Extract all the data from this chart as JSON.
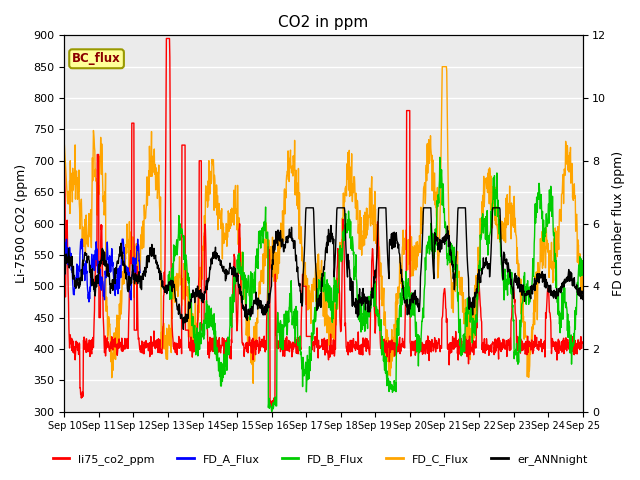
{
  "title": "CO2 in ppm",
  "ylabel_left": "Li-7500 CO2 (ppm)",
  "ylabel_right": "FD chamber flux (ppm)",
  "ylim_left": [
    300,
    900
  ],
  "ylim_right": [
    0,
    12
  ],
  "yticks_left": [
    300,
    350,
    400,
    450,
    500,
    550,
    600,
    650,
    700,
    750,
    800,
    850,
    900
  ],
  "yticks_right": [
    0,
    2,
    4,
    6,
    8,
    10,
    12
  ],
  "x_tick_labels": [
    "Sep 10",
    "Sep 11",
    "Sep 12",
    "Sep 13",
    "Sep 14",
    "Sep 15",
    "Sep 16",
    "Sep 17",
    "Sep 18",
    "Sep 19",
    "Sep 20",
    "Sep 21",
    "Sep 22",
    "Sep 23",
    "Sep 24",
    "Sep 25"
  ],
  "n_points": 1500,
  "background_color": "#ebebeb",
  "figure_background": "#ffffff",
  "bc_flux_label": "BC_flux",
  "legend_labels": [
    "li75_co2_ppm",
    "FD_A_Flux",
    "FD_B_Flux",
    "FD_C_Flux",
    "er_ANNnight"
  ],
  "legend_colors": [
    "#ff0000",
    "#0000ff",
    "#00cc00",
    "#ffa500",
    "#000000"
  ],
  "title_fontsize": 11,
  "label_fontsize": 9
}
